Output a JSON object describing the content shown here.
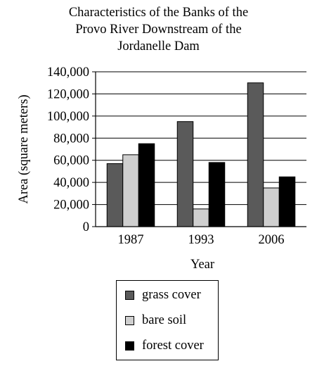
{
  "chart_data": {
    "type": "bar",
    "title": [
      "Characteristics of the Banks of the",
      "Provo River Downstream of the",
      "Jordanelle Dam"
    ],
    "xlabel": "Year",
    "ylabel": "Area (square meters)",
    "categories": [
      "1987",
      "1993",
      "2006"
    ],
    "ylim": [
      0,
      140000
    ],
    "yticks": [
      0,
      20000,
      40000,
      60000,
      80000,
      100000,
      120000,
      140000
    ],
    "ytick_labels": [
      "0",
      "20,000",
      "40,000",
      "60,000",
      "80,000",
      "100,000",
      "120,000",
      "140,000"
    ],
    "grid": "horizontal",
    "legend_position": "bottom",
    "series": [
      {
        "name": "grass cover",
        "color": "#5a5a5a",
        "values": [
          57000,
          95000,
          130000
        ]
      },
      {
        "name": "bare soil",
        "color": "#cfcfcf",
        "values": [
          65000,
          16000,
          35000
        ]
      },
      {
        "name": "forest cover",
        "color": "#000000",
        "values": [
          75000,
          58000,
          45000
        ]
      }
    ]
  }
}
